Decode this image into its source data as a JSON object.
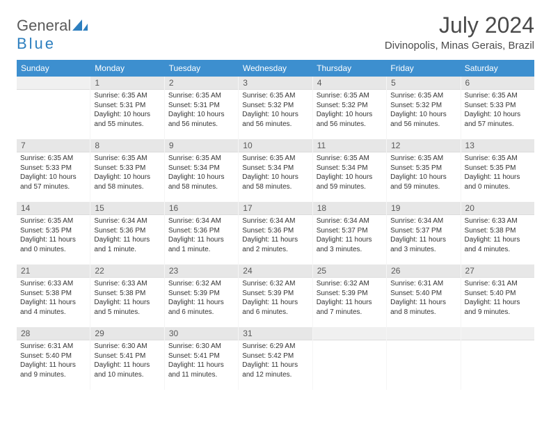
{
  "logo": {
    "word1": "General",
    "word2": "Blue"
  },
  "title": "July 2024",
  "location": "Divinopolis, Minas Gerais, Brazil",
  "colors": {
    "header_bg": "#3d8fcf",
    "daynum_bg": "#e7e7e7",
    "text": "#333333",
    "title": "#4a4a4a"
  },
  "days_of_week": [
    "Sunday",
    "Monday",
    "Tuesday",
    "Wednesday",
    "Thursday",
    "Friday",
    "Saturday"
  ],
  "weeks": [
    [
      {
        "n": "",
        "sunrise": "",
        "sunset": "",
        "daylight": ""
      },
      {
        "n": "1",
        "sunrise": "Sunrise: 6:35 AM",
        "sunset": "Sunset: 5:31 PM",
        "daylight": "Daylight: 10 hours and 55 minutes."
      },
      {
        "n": "2",
        "sunrise": "Sunrise: 6:35 AM",
        "sunset": "Sunset: 5:31 PM",
        "daylight": "Daylight: 10 hours and 56 minutes."
      },
      {
        "n": "3",
        "sunrise": "Sunrise: 6:35 AM",
        "sunset": "Sunset: 5:32 PM",
        "daylight": "Daylight: 10 hours and 56 minutes."
      },
      {
        "n": "4",
        "sunrise": "Sunrise: 6:35 AM",
        "sunset": "Sunset: 5:32 PM",
        "daylight": "Daylight: 10 hours and 56 minutes."
      },
      {
        "n": "5",
        "sunrise": "Sunrise: 6:35 AM",
        "sunset": "Sunset: 5:32 PM",
        "daylight": "Daylight: 10 hours and 56 minutes."
      },
      {
        "n": "6",
        "sunrise": "Sunrise: 6:35 AM",
        "sunset": "Sunset: 5:33 PM",
        "daylight": "Daylight: 10 hours and 57 minutes."
      }
    ],
    [
      {
        "n": "7",
        "sunrise": "Sunrise: 6:35 AM",
        "sunset": "Sunset: 5:33 PM",
        "daylight": "Daylight: 10 hours and 57 minutes."
      },
      {
        "n": "8",
        "sunrise": "Sunrise: 6:35 AM",
        "sunset": "Sunset: 5:33 PM",
        "daylight": "Daylight: 10 hours and 58 minutes."
      },
      {
        "n": "9",
        "sunrise": "Sunrise: 6:35 AM",
        "sunset": "Sunset: 5:34 PM",
        "daylight": "Daylight: 10 hours and 58 minutes."
      },
      {
        "n": "10",
        "sunrise": "Sunrise: 6:35 AM",
        "sunset": "Sunset: 5:34 PM",
        "daylight": "Daylight: 10 hours and 58 minutes."
      },
      {
        "n": "11",
        "sunrise": "Sunrise: 6:35 AM",
        "sunset": "Sunset: 5:34 PM",
        "daylight": "Daylight: 10 hours and 59 minutes."
      },
      {
        "n": "12",
        "sunrise": "Sunrise: 6:35 AM",
        "sunset": "Sunset: 5:35 PM",
        "daylight": "Daylight: 10 hours and 59 minutes."
      },
      {
        "n": "13",
        "sunrise": "Sunrise: 6:35 AM",
        "sunset": "Sunset: 5:35 PM",
        "daylight": "Daylight: 11 hours and 0 minutes."
      }
    ],
    [
      {
        "n": "14",
        "sunrise": "Sunrise: 6:35 AM",
        "sunset": "Sunset: 5:35 PM",
        "daylight": "Daylight: 11 hours and 0 minutes."
      },
      {
        "n": "15",
        "sunrise": "Sunrise: 6:34 AM",
        "sunset": "Sunset: 5:36 PM",
        "daylight": "Daylight: 11 hours and 1 minute."
      },
      {
        "n": "16",
        "sunrise": "Sunrise: 6:34 AM",
        "sunset": "Sunset: 5:36 PM",
        "daylight": "Daylight: 11 hours and 1 minute."
      },
      {
        "n": "17",
        "sunrise": "Sunrise: 6:34 AM",
        "sunset": "Sunset: 5:36 PM",
        "daylight": "Daylight: 11 hours and 2 minutes."
      },
      {
        "n": "18",
        "sunrise": "Sunrise: 6:34 AM",
        "sunset": "Sunset: 5:37 PM",
        "daylight": "Daylight: 11 hours and 3 minutes."
      },
      {
        "n": "19",
        "sunrise": "Sunrise: 6:34 AM",
        "sunset": "Sunset: 5:37 PM",
        "daylight": "Daylight: 11 hours and 3 minutes."
      },
      {
        "n": "20",
        "sunrise": "Sunrise: 6:33 AM",
        "sunset": "Sunset: 5:38 PM",
        "daylight": "Daylight: 11 hours and 4 minutes."
      }
    ],
    [
      {
        "n": "21",
        "sunrise": "Sunrise: 6:33 AM",
        "sunset": "Sunset: 5:38 PM",
        "daylight": "Daylight: 11 hours and 4 minutes."
      },
      {
        "n": "22",
        "sunrise": "Sunrise: 6:33 AM",
        "sunset": "Sunset: 5:38 PM",
        "daylight": "Daylight: 11 hours and 5 minutes."
      },
      {
        "n": "23",
        "sunrise": "Sunrise: 6:32 AM",
        "sunset": "Sunset: 5:39 PM",
        "daylight": "Daylight: 11 hours and 6 minutes."
      },
      {
        "n": "24",
        "sunrise": "Sunrise: 6:32 AM",
        "sunset": "Sunset: 5:39 PM",
        "daylight": "Daylight: 11 hours and 6 minutes."
      },
      {
        "n": "25",
        "sunrise": "Sunrise: 6:32 AM",
        "sunset": "Sunset: 5:39 PM",
        "daylight": "Daylight: 11 hours and 7 minutes."
      },
      {
        "n": "26",
        "sunrise": "Sunrise: 6:31 AM",
        "sunset": "Sunset: 5:40 PM",
        "daylight": "Daylight: 11 hours and 8 minutes."
      },
      {
        "n": "27",
        "sunrise": "Sunrise: 6:31 AM",
        "sunset": "Sunset: 5:40 PM",
        "daylight": "Daylight: 11 hours and 9 minutes."
      }
    ],
    [
      {
        "n": "28",
        "sunrise": "Sunrise: 6:31 AM",
        "sunset": "Sunset: 5:40 PM",
        "daylight": "Daylight: 11 hours and 9 minutes."
      },
      {
        "n": "29",
        "sunrise": "Sunrise: 6:30 AM",
        "sunset": "Sunset: 5:41 PM",
        "daylight": "Daylight: 11 hours and 10 minutes."
      },
      {
        "n": "30",
        "sunrise": "Sunrise: 6:30 AM",
        "sunset": "Sunset: 5:41 PM",
        "daylight": "Daylight: 11 hours and 11 minutes."
      },
      {
        "n": "31",
        "sunrise": "Sunrise: 6:29 AM",
        "sunset": "Sunset: 5:42 PM",
        "daylight": "Daylight: 11 hours and 12 minutes."
      },
      {
        "n": "",
        "sunrise": "",
        "sunset": "",
        "daylight": ""
      },
      {
        "n": "",
        "sunrise": "",
        "sunset": "",
        "daylight": ""
      },
      {
        "n": "",
        "sunrise": "",
        "sunset": "",
        "daylight": ""
      }
    ]
  ]
}
